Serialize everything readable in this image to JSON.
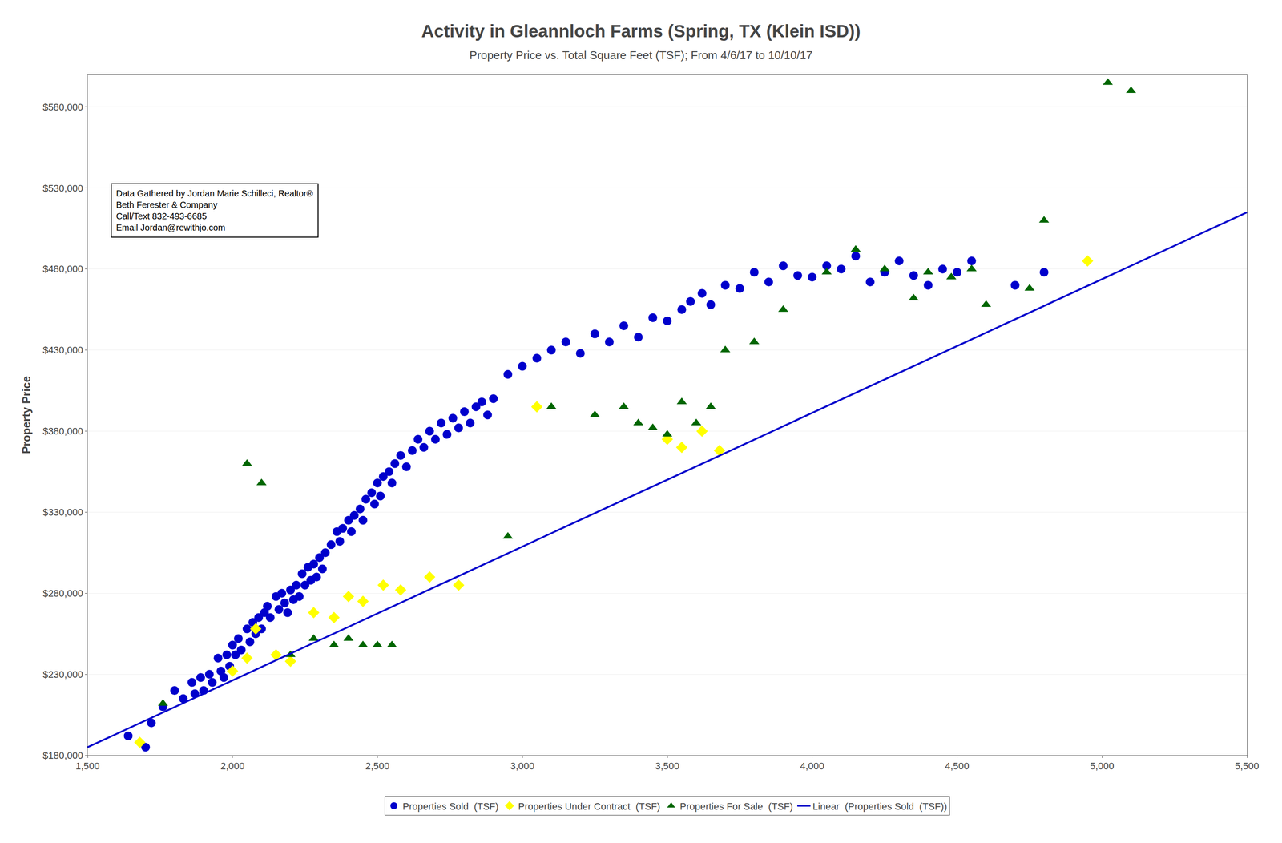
{
  "chart_data": {
    "type": "scatter",
    "title": "Activity in Gleannloch Farms (Spring, TX (Klein ISD))",
    "subtitle": "Property Price vs. Total Square Feet (TSF); From 4/6/17 to 10/10/17",
    "ylabel": "Property Price",
    "annotation": [
      "Data Gathered by Jordan Marie Schilleci, Realtor®",
      "Beth Ferester & Company",
      "Call/Text 832-493-6685",
      "Email Jordan@rewithjo.com"
    ],
    "xlim": [
      1500,
      5500
    ],
    "ylim": [
      180000,
      600000
    ],
    "xticks": [
      {
        "value": 1500,
        "label": "1,500"
      },
      {
        "value": 2000,
        "label": "2,000"
      },
      {
        "value": 2500,
        "label": "2,500"
      },
      {
        "value": 3000,
        "label": "3,000"
      },
      {
        "value": 3500,
        "label": "3,500"
      },
      {
        "value": 4000,
        "label": "4,000"
      },
      {
        "value": 4500,
        "label": "4,500"
      },
      {
        "value": 5000,
        "label": "5,000"
      },
      {
        "value": 5500,
        "label": "5,500"
      }
    ],
    "yticks": [
      {
        "value": 180000,
        "label": "$180,000"
      },
      {
        "value": 230000,
        "label": "$230,000"
      },
      {
        "value": 280000,
        "label": "$280,000"
      },
      {
        "value": 330000,
        "label": "$330,000"
      },
      {
        "value": 380000,
        "label": "$380,000"
      },
      {
        "value": 430000,
        "label": "$430,000"
      },
      {
        "value": 480000,
        "label": "$480,000"
      },
      {
        "value": 530000,
        "label": "$530,000"
      },
      {
        "value": 580000,
        "label": "$580,000"
      }
    ],
    "grid": "y",
    "legend": "bottom",
    "series": [
      {
        "name": "Properties Sold  (TSF)",
        "type": "scatter",
        "marker": "circle",
        "color": "#0000cc",
        "x": [
          1640,
          1700,
          1720,
          1760,
          1800,
          1830,
          1860,
          1870,
          1890,
          1900,
          1920,
          1930,
          1950,
          1960,
          1970,
          1980,
          1990,
          2000,
          2010,
          2020,
          2030,
          2050,
          2060,
          2070,
          2080,
          2090,
          2100,
          2110,
          2120,
          2130,
          2150,
          2160,
          2170,
          2180,
          2190,
          2200,
          2210,
          2220,
          2230,
          2240,
          2250,
          2260,
          2270,
          2280,
          2290,
          2300,
          2310,
          2320,
          2340,
          2360,
          2370,
          2380,
          2400,
          2410,
          2420,
          2440,
          2450,
          2460,
          2480,
          2490,
          2500,
          2510,
          2520,
          2540,
          2550,
          2560,
          2580,
          2600,
          2620,
          2640,
          2660,
          2680,
          2700,
          2720,
          2740,
          2760,
          2780,
          2800,
          2820,
          2840,
          2860,
          2880,
          2900,
          2950,
          3000,
          3050,
          3100,
          3150,
          3200,
          3250,
          3300,
          3350,
          3400,
          3450,
          3500,
          3550,
          3580,
          3620,
          3650,
          3700,
          3750,
          3800,
          3850,
          3900,
          3950,
          4000,
          4050,
          4100,
          4150,
          4200,
          4250,
          4300,
          4350,
          4400,
          4450,
          4500,
          4550,
          4700,
          4800
        ],
        "values": [
          192000,
          185000,
          200000,
          210000,
          220000,
          215000,
          225000,
          218000,
          228000,
          220000,
          230000,
          225000,
          240000,
          232000,
          228000,
          242000,
          235000,
          248000,
          242000,
          252000,
          245000,
          258000,
          250000,
          262000,
          255000,
          265000,
          258000,
          268000,
          272000,
          265000,
          278000,
          270000,
          280000,
          274000,
          268000,
          282000,
          276000,
          285000,
          278000,
          292000,
          285000,
          296000,
          288000,
          298000,
          290000,
          302000,
          295000,
          305000,
          310000,
          318000,
          312000,
          320000,
          325000,
          318000,
          328000,
          332000,
          325000,
          338000,
          342000,
          335000,
          348000,
          340000,
          352000,
          355000,
          348000,
          360000,
          365000,
          358000,
          368000,
          375000,
          370000,
          380000,
          375000,
          385000,
          378000,
          388000,
          382000,
          392000,
          385000,
          395000,
          398000,
          390000,
          400000,
          415000,
          420000,
          425000,
          430000,
          435000,
          428000,
          440000,
          435000,
          445000,
          438000,
          450000,
          448000,
          455000,
          460000,
          465000,
          458000,
          470000,
          468000,
          478000,
          472000,
          482000,
          476000,
          475000,
          482000,
          480000,
          488000,
          472000,
          478000,
          485000,
          476000,
          470000,
          480000,
          478000,
          485000,
          470000,
          478000
        ]
      },
      {
        "name": "Properties Under Contract  (TSF)",
        "type": "scatter",
        "marker": "diamond",
        "color": "#ffff00",
        "x": [
          1680,
          2000,
          2050,
          2080,
          2150,
          2200,
          2280,
          2350,
          2400,
          2450,
          2520,
          2580,
          2680,
          2780,
          3050,
          3500,
          3550,
          3620,
          3680,
          4950
        ],
        "values": [
          188000,
          232000,
          240000,
          258000,
          242000,
          238000,
          268000,
          265000,
          278000,
          275000,
          285000,
          282000,
          290000,
          285000,
          395000,
          375000,
          370000,
          380000,
          368000,
          485000
        ]
      },
      {
        "name": "Properties For Sale  (TSF)",
        "type": "scatter",
        "marker": "triangle-up",
        "color": "#006600",
        "x": [
          1760,
          2050,
          2100,
          2200,
          2280,
          2350,
          2400,
          2450,
          2500,
          2550,
          2950,
          3100,
          3250,
          3350,
          3400,
          3450,
          3500,
          3550,
          3600,
          3650,
          3700,
          3800,
          3900,
          4050,
          4150,
          4250,
          4350,
          4400,
          4480,
          4550,
          4600,
          4750,
          4800,
          5020,
          5100
        ],
        "values": [
          212000,
          360000,
          348000,
          242000,
          252000,
          248000,
          252000,
          248000,
          248000,
          248000,
          315000,
          395000,
          390000,
          395000,
          385000,
          382000,
          378000,
          398000,
          385000,
          395000,
          430000,
          435000,
          455000,
          478000,
          492000,
          480000,
          462000,
          478000,
          475000,
          480000,
          458000,
          468000,
          510000,
          595000,
          590000
        ]
      },
      {
        "name": "Linear  (Properties Sold  (TSF))",
        "type": "line",
        "line_style": "solid",
        "color": "#0000cc",
        "x": [
          1500,
          5500
        ],
        "values": [
          185000,
          515000
        ]
      }
    ]
  }
}
